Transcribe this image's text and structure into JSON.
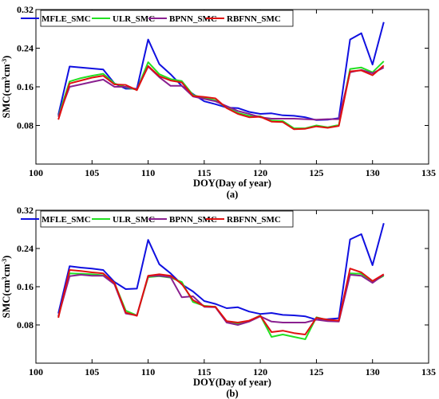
{
  "chart_data": [
    {
      "type": "line",
      "panel_label": "(a)",
      "xlabel": "DOY(Day of year)",
      "ylabel_main": "SMC(cm",
      "ylabel_sup1": "3",
      "ylabel_mid": "cm",
      "ylabel_sup2": "-3",
      "ylabel_end": ")",
      "xlim": [
        100,
        135
      ],
      "ylim": [
        0.0,
        0.32
      ],
      "xticks": [
        100,
        105,
        110,
        115,
        120,
        125,
        130,
        135
      ],
      "yticks": [
        0.08,
        0.16,
        0.24,
        0.32
      ],
      "ytick_labels": [
        "0.08",
        "0.16",
        "0.24",
        "0.32"
      ],
      "x": [
        102,
        103,
        104,
        105,
        106,
        107,
        108,
        109,
        110,
        111,
        112,
        113,
        114,
        115,
        116,
        117,
        118,
        119,
        120,
        121,
        122,
        123,
        124,
        125,
        126,
        127,
        128,
        129,
        130,
        131
      ],
      "legend_position": "top",
      "series": [
        {
          "name": "MFLE_SMC",
          "color": "#1010e0",
          "values": [
            0.102,
            0.202,
            0.2,
            0.198,
            0.196,
            0.167,
            0.156,
            0.156,
            0.258,
            0.207,
            0.186,
            0.162,
            0.145,
            0.13,
            0.124,
            0.117,
            0.116,
            0.108,
            0.104,
            0.105,
            0.101,
            0.1,
            0.097,
            0.091,
            0.092,
            0.095,
            0.258,
            0.271,
            0.206,
            0.294
          ]
        },
        {
          "name": "ULR_SMC",
          "color": "#22e022",
          "values": [
            0.099,
            0.171,
            0.178,
            0.183,
            0.187,
            0.167,
            0.159,
            0.154,
            0.211,
            0.186,
            0.176,
            0.172,
            0.143,
            0.137,
            0.132,
            0.117,
            0.106,
            0.1,
            0.099,
            0.09,
            0.089,
            0.074,
            0.074,
            0.08,
            0.076,
            0.081,
            0.197,
            0.2,
            0.19,
            0.213
          ]
        },
        {
          "name": "BPNN_SMC",
          "color": "#8a2090",
          "values": [
            0.098,
            0.16,
            0.165,
            0.17,
            0.175,
            0.16,
            0.16,
            0.155,
            0.202,
            0.18,
            0.162,
            0.162,
            0.14,
            0.135,
            0.13,
            0.12,
            0.11,
            0.104,
            0.097,
            0.094,
            0.094,
            0.094,
            0.093,
            0.092,
            0.093,
            0.093,
            0.19,
            0.195,
            0.188,
            0.2
          ]
        },
        {
          "name": "RBFNN_SMC",
          "color": "#e01010",
          "values": [
            0.092,
            0.167,
            0.173,
            0.179,
            0.183,
            0.165,
            0.164,
            0.153,
            0.203,
            0.182,
            0.173,
            0.169,
            0.141,
            0.139,
            0.136,
            0.116,
            0.104,
            0.097,
            0.098,
            0.088,
            0.087,
            0.072,
            0.073,
            0.078,
            0.075,
            0.079,
            0.192,
            0.194,
            0.184,
            0.204
          ]
        }
      ]
    },
    {
      "type": "line",
      "panel_label": "(b)",
      "xlabel": "DOY(Day of year)",
      "ylabel_main": "SMC(cm",
      "ylabel_sup1": "3",
      "ylabel_mid": "cm",
      "ylabel_sup2": "-3",
      "ylabel_end": ")",
      "xlim": [
        100,
        135
      ],
      "ylim": [
        0.0,
        0.32
      ],
      "xticks": [
        100,
        105,
        110,
        115,
        120,
        125,
        130,
        135
      ],
      "yticks": [
        0.08,
        0.16,
        0.24,
        0.32
      ],
      "ytick_labels": [
        "0.08",
        "0.16",
        "0.24",
        "0.32"
      ],
      "x": [
        102,
        103,
        104,
        105,
        106,
        107,
        108,
        109,
        110,
        111,
        112,
        113,
        114,
        115,
        116,
        117,
        118,
        119,
        120,
        121,
        122,
        123,
        124,
        125,
        126,
        127,
        128,
        129,
        130,
        131
      ],
      "legend_position": "top",
      "series": [
        {
          "name": "MFLE_SMC",
          "color": "#1010e0",
          "values": [
            0.104,
            0.203,
            0.2,
            0.198,
            0.195,
            0.17,
            0.155,
            0.156,
            0.258,
            0.207,
            0.188,
            0.165,
            0.15,
            0.13,
            0.124,
            0.115,
            0.117,
            0.108,
            0.103,
            0.105,
            0.101,
            0.1,
            0.098,
            0.091,
            0.092,
            0.094,
            0.259,
            0.27,
            0.205,
            0.293
          ]
        },
        {
          "name": "ULR_SMC",
          "color": "#22e022",
          "values": [
            0.097,
            0.188,
            0.187,
            0.186,
            0.184,
            0.168,
            0.11,
            0.1,
            0.18,
            0.182,
            0.179,
            0.17,
            0.128,
            0.12,
            0.118,
            0.087,
            0.083,
            0.088,
            0.1,
            0.055,
            0.06,
            0.055,
            0.05,
            0.096,
            0.09,
            0.088,
            0.188,
            0.187,
            0.17,
            0.183
          ]
        },
        {
          "name": "BPNN_SMC",
          "color": "#8a2090",
          "values": [
            0.098,
            0.182,
            0.185,
            0.183,
            0.183,
            0.165,
            0.104,
            0.1,
            0.182,
            0.183,
            0.18,
            0.138,
            0.14,
            0.118,
            0.117,
            0.085,
            0.08,
            0.087,
            0.098,
            0.087,
            0.085,
            0.085,
            0.085,
            0.091,
            0.088,
            0.087,
            0.185,
            0.183,
            0.168,
            0.185
          ]
        },
        {
          "name": "RBFNN_SMC",
          "color": "#e01010",
          "values": [
            0.095,
            0.195,
            0.193,
            0.19,
            0.188,
            0.168,
            0.106,
            0.099,
            0.183,
            0.186,
            0.183,
            0.166,
            0.132,
            0.119,
            0.118,
            0.088,
            0.085,
            0.089,
            0.099,
            0.065,
            0.068,
            0.063,
            0.06,
            0.095,
            0.091,
            0.089,
            0.198,
            0.19,
            0.172,
            0.186
          ]
        }
      ]
    }
  ]
}
